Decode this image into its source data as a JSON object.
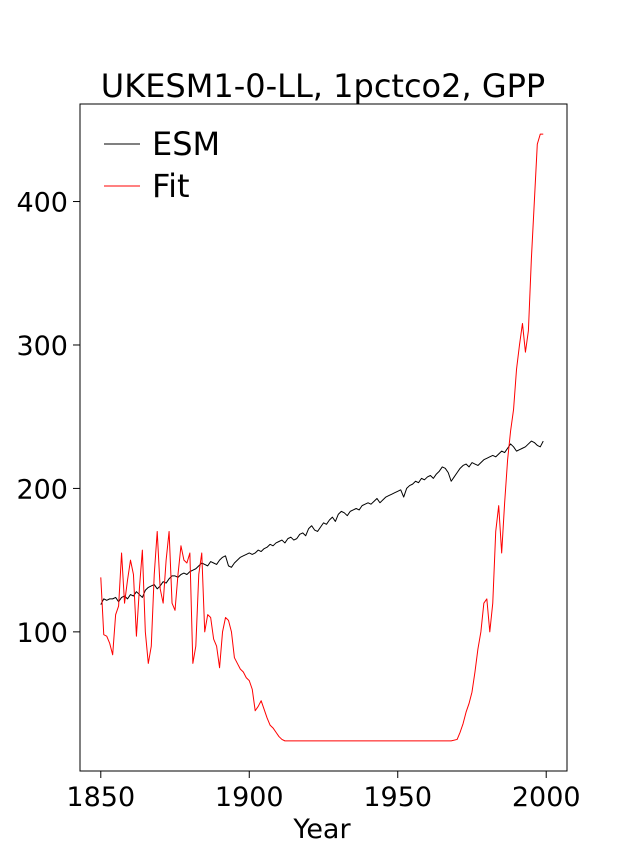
{
  "chart_data": {
    "type": "line",
    "title": "UKESM1-0-LL, 1pctco2, GPP",
    "xlabel": "Year",
    "ylabel": "",
    "xlim": [
      1843,
      2007
    ],
    "ylim": [
      3,
      468
    ],
    "xticks": [
      1850,
      1900,
      1950,
      2000
    ],
    "yticks": [
      100,
      200,
      300,
      400
    ],
    "grid": false,
    "legend_position": "top-left",
    "series": [
      {
        "name": "ESM",
        "color": "#000000",
        "x": [
          1850,
          1851,
          1852,
          1853,
          1854,
          1855,
          1856,
          1857,
          1858,
          1859,
          1860,
          1861,
          1862,
          1863,
          1864,
          1865,
          1866,
          1867,
          1868,
          1869,
          1870,
          1871,
          1872,
          1873,
          1874,
          1875,
          1876,
          1877,
          1878,
          1879,
          1880,
          1881,
          1882,
          1883,
          1884,
          1885,
          1886,
          1887,
          1888,
          1889,
          1890,
          1891,
          1892,
          1893,
          1894,
          1895,
          1896,
          1897,
          1898,
          1899,
          1900,
          1901,
          1902,
          1903,
          1904,
          1905,
          1906,
          1907,
          1908,
          1909,
          1910,
          1911,
          1912,
          1913,
          1914,
          1915,
          1916,
          1917,
          1918,
          1919,
          1920,
          1921,
          1922,
          1923,
          1924,
          1925,
          1926,
          1927,
          1928,
          1929,
          1930,
          1931,
          1932,
          1933,
          1934,
          1935,
          1936,
          1937,
          1938,
          1939,
          1940,
          1941,
          1942,
          1943,
          1944,
          1945,
          1946,
          1947,
          1948,
          1949,
          1950,
          1951,
          1952,
          1953,
          1954,
          1955,
          1956,
          1957,
          1958,
          1959,
          1960,
          1961,
          1962,
          1963,
          1964,
          1965,
          1966,
          1967,
          1968,
          1969,
          1970,
          1971,
          1972,
          1973,
          1974,
          1975,
          1976,
          1977,
          1978,
          1979,
          1980,
          1981,
          1982,
          1983,
          1984,
          1985,
          1986,
          1987,
          1988,
          1989,
          1990,
          1991,
          1992,
          1993,
          1994,
          1995,
          1996,
          1997,
          1998,
          1999
        ],
        "y": [
          119,
          123,
          122,
          123,
          123,
          124,
          121,
          124,
          125,
          123,
          126,
          125,
          128,
          126,
          124,
          129,
          131,
          132,
          133,
          130,
          132,
          135,
          134,
          137,
          139,
          139,
          138,
          140,
          141,
          140,
          142,
          143,
          144,
          146,
          148,
          147,
          146,
          149,
          148,
          147,
          150,
          152,
          153,
          146,
          145,
          148,
          150,
          152,
          153,
          154,
          155,
          154,
          155,
          157,
          156,
          158,
          159,
          161,
          160,
          162,
          163,
          164,
          162,
          165,
          166,
          164,
          165,
          168,
          169,
          167,
          172,
          174,
          171,
          170,
          173,
          176,
          175,
          178,
          180,
          177,
          182,
          184,
          183,
          181,
          184,
          185,
          186,
          185,
          188,
          189,
          190,
          189,
          191,
          193,
          190,
          192,
          194,
          195,
          196,
          197,
          198,
          199,
          194,
          200,
          202,
          203,
          205,
          204,
          207,
          206,
          208,
          209,
          207,
          210,
          212,
          215,
          214,
          211,
          205,
          208,
          211,
          214,
          216,
          217,
          215,
          218,
          217,
          216,
          218,
          220,
          221,
          222,
          223,
          222,
          224,
          226,
          225,
          228,
          231,
          229,
          226,
          227,
          228,
          229,
          231,
          233,
          232,
          230,
          229,
          233
        ]
      },
      {
        "name": "Fit",
        "color": "#ff0000",
        "x": [
          1850,
          1851,
          1852,
          1853,
          1854,
          1855,
          1856,
          1857,
          1858,
          1859,
          1860,
          1861,
          1862,
          1863,
          1864,
          1865,
          1866,
          1867,
          1868,
          1869,
          1870,
          1871,
          1872,
          1873,
          1874,
          1875,
          1876,
          1877,
          1878,
          1879,
          1880,
          1881,
          1882,
          1883,
          1884,
          1885,
          1886,
          1887,
          1888,
          1889,
          1890,
          1891,
          1892,
          1893,
          1894,
          1895,
          1896,
          1897,
          1898,
          1899,
          1900,
          1901,
          1902,
          1903,
          1904,
          1905,
          1906,
          1907,
          1908,
          1909,
          1910,
          1911,
          1912,
          1913,
          1914,
          1915,
          1916,
          1917,
          1918,
          1920,
          1930,
          1940,
          1950,
          1960,
          1965,
          1968,
          1970,
          1971,
          1972,
          1973,
          1974,
          1975,
          1976,
          1977,
          1978,
          1979,
          1980,
          1981,
          1982,
          1983,
          1984,
          1985,
          1986,
          1987,
          1988,
          1989,
          1990,
          1991,
          1992,
          1993,
          1994,
          1995,
          1996,
          1997,
          1998,
          1999
        ],
        "y": [
          138,
          98,
          97,
          92,
          84,
          112,
          118,
          155,
          120,
          136,
          150,
          140,
          97,
          130,
          157,
          100,
          78,
          90,
          140,
          170,
          130,
          120,
          150,
          170,
          120,
          115,
          140,
          160,
          150,
          148,
          155,
          78,
          90,
          140,
          155,
          100,
          112,
          110,
          95,
          90,
          75,
          100,
          110,
          108,
          100,
          82,
          78,
          74,
          72,
          68,
          66,
          60,
          45,
          48,
          52,
          46,
          40,
          35,
          33,
          30,
          27,
          25,
          24,
          24,
          24,
          24,
          24,
          24,
          24,
          24,
          24,
          24,
          24,
          24,
          24,
          24,
          25,
          30,
          36,
          44,
          50,
          58,
          72,
          88,
          100,
          120,
          123,
          100,
          120,
          170,
          188,
          155,
          190,
          220,
          240,
          255,
          283,
          300,
          315,
          295,
          310,
          360,
          400,
          440,
          447,
          447
        ]
      }
    ]
  }
}
